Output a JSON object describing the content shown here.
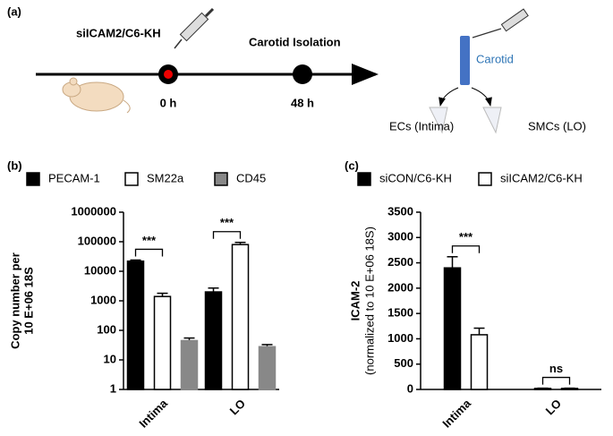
{
  "panel_labels": [
    "(a)",
    "(b)",
    "(c)"
  ],
  "diagram": {
    "injection": "siICAM2/C6-KH",
    "isolation": "Carotid Isolation",
    "time_start": "0 h",
    "time_end": "48 h",
    "vessel": "Carotid",
    "left_fraction": "ECs (Intima)",
    "right_fraction": "SMCs (LO)"
  },
  "chart_data": [
    {
      "type": "bar",
      "y_label": [
        "Copy number per",
        "10 E+06 18S"
      ],
      "categories": [
        "Intima",
        "LO"
      ],
      "log_scale": true,
      "series": [
        {
          "name": "PECAM-1",
          "color": "#000000",
          "values": [
            22000,
            2000
          ],
          "errors": [
            2000,
            700
          ]
        },
        {
          "name": "SM22a",
          "color": "#ffffff",
          "values": [
            1400,
            80000
          ],
          "errors": [
            400,
            15000
          ]
        },
        {
          "name": "CD45",
          "color": "#888888",
          "values": [
            45,
            28
          ],
          "errors": [
            10,
            5
          ]
        }
      ],
      "ylim": [
        1,
        1000000
      ],
      "yticks": [
        1,
        10,
        100,
        1000,
        10000,
        100000,
        1000000
      ],
      "annotations": [
        "***",
        "***"
      ]
    },
    {
      "type": "bar",
      "y_label": [
        "ICAM-2",
        "(normalized to 10 E+06  18S)"
      ],
      "categories": [
        "Intima",
        "LO"
      ],
      "log_scale": false,
      "series": [
        {
          "name": "siCON/C6-KH",
          "color": "#000000",
          "values": [
            2400,
            20
          ],
          "errors": [
            220,
            5
          ]
        },
        {
          "name": "siICAM2/C6-KH",
          "color": "#ffffff",
          "values": [
            1080,
            20
          ],
          "errors": [
            130,
            5
          ]
        }
      ],
      "ylim": [
        0,
        3500
      ],
      "yticks": [
        0,
        500,
        1000,
        1500,
        2000,
        2500,
        3000,
        3500
      ],
      "annotations": [
        "***",
        "ns"
      ]
    }
  ]
}
